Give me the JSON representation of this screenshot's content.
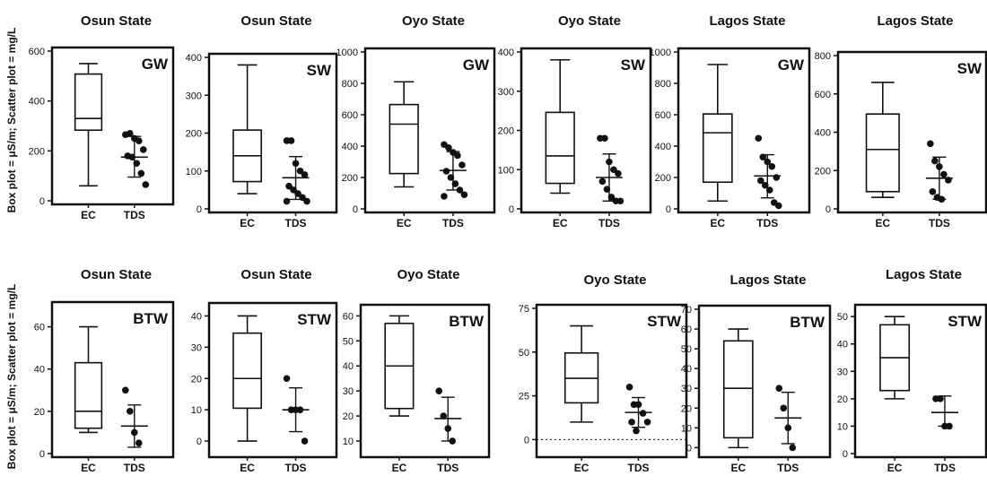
{
  "y_axis_label": "Box plot = μS/m; Scatter plot = mg/L",
  "colors": {
    "ink": "#111111",
    "background": "#ffffff"
  },
  "chart_data": [
    {
      "type": "box+scatter",
      "title": "Osun State",
      "tag": "GW",
      "categories": [
        "EC",
        "TDS"
      ],
      "ylim": [
        0,
        600
      ],
      "yticks": [
        0,
        200,
        400,
        600
      ],
      "box": {
        "min": 60,
        "q1": 283,
        "median": 330,
        "q3": 508,
        "max": 550
      },
      "points": [
        265,
        270,
        250,
        240,
        205,
        180,
        175,
        150,
        110,
        65
      ],
      "mean_sd": {
        "mean": 175,
        "lower": 95,
        "upper": 258
      }
    },
    {
      "type": "box+scatter",
      "title": "Osun State",
      "tag": "SW",
      "categories": [
        "EC",
        "TDS"
      ],
      "ylim": [
        0,
        400
      ],
      "yticks": [
        0,
        100,
        200,
        300,
        400
      ],
      "box": {
        "min": 40,
        "q1": 72,
        "median": 140,
        "q3": 208,
        "max": 380
      },
      "points": [
        180,
        180,
        120,
        100,
        90,
        60,
        50,
        40,
        30,
        20,
        20
      ],
      "mean_sd": {
        "mean": 82,
        "lower": 25,
        "upper": 138
      }
    },
    {
      "type": "box+scatter",
      "title": "Oyo State",
      "tag": "GW",
      "categories": [
        "EC",
        "TDS"
      ],
      "ylim": [
        0,
        1000
      ],
      "yticks": [
        0,
        200,
        400,
        600,
        800,
        1000
      ],
      "box": {
        "min": 140,
        "q1": 225,
        "median": 540,
        "q3": 665,
        "max": 810
      },
      "points": [
        410,
        390,
        360,
        340,
        280,
        240,
        200,
        160,
        120,
        90,
        80
      ],
      "mean_sd": {
        "mean": 245,
        "lower": 120,
        "upper": 365
      }
    },
    {
      "type": "box+scatter",
      "title": "Oyo State",
      "tag": "SW",
      "categories": [
        "EC",
        "TDS"
      ],
      "ylim": [
        0,
        400
      ],
      "yticks": [
        0,
        100,
        200,
        300,
        400
      ],
      "box": {
        "min": 40,
        "q1": 65,
        "median": 135,
        "q3": 246,
        "max": 380
      },
      "points": [
        180,
        180,
        120,
        100,
        90,
        70,
        50,
        30,
        20,
        20
      ],
      "mean_sd": {
        "mean": 80,
        "lower": 20,
        "upper": 140
      }
    },
    {
      "type": "box+scatter",
      "title": "Lagos State",
      "tag": "GW",
      "categories": [
        "EC",
        "TDS"
      ],
      "ylim": [
        0,
        1000
      ],
      "yticks": [
        0,
        200,
        400,
        600,
        800,
        1000
      ],
      "box": {
        "min": 50,
        "q1": 170,
        "median": 485,
        "q3": 605,
        "max": 920
      },
      "points": [
        450,
        330,
        300,
        270,
        200,
        180,
        150,
        120,
        40,
        20
      ],
      "mean_sd": {
        "mean": 210,
        "lower": 70,
        "upper": 345
      }
    },
    {
      "type": "box+scatter",
      "title": "Lagos State",
      "tag": "SW",
      "categories": [
        "EC",
        "TDS"
      ],
      "ylim": [
        0,
        800
      ],
      "yticks": [
        0,
        200,
        400,
        600,
        800
      ],
      "box": {
        "min": 60,
        "q1": 90,
        "median": 310,
        "q3": 495,
        "max": 660
      },
      "points": [
        340,
        250,
        220,
        180,
        150,
        90,
        60,
        50
      ],
      "mean_sd": {
        "mean": 160,
        "lower": 50,
        "upper": 270
      }
    },
    {
      "type": "box+scatter",
      "title": "Osun State",
      "tag": "BTW",
      "categories": [
        "EC",
        "TDS"
      ],
      "ylim": [
        0,
        70
      ],
      "yticks": [
        0,
        20,
        40,
        60
      ],
      "box": {
        "min": 10,
        "q1": 12,
        "median": 20,
        "q3": 43,
        "max": 60
      },
      "points": [
        30,
        20,
        10,
        5
      ],
      "mean_sd": {
        "mean": 13,
        "lower": 3,
        "upper": 23
      }
    },
    {
      "type": "box+scatter",
      "title": "Osun State",
      "tag": "STW",
      "categories": [
        "EC",
        "TDS"
      ],
      "ylim": [
        -4,
        43
      ],
      "yticks": [
        0,
        10,
        20,
        30,
        40
      ],
      "box": {
        "min": 0,
        "q1": 10.5,
        "median": 20,
        "q3": 34.5,
        "max": 40
      },
      "points": [
        20,
        10,
        10,
        10,
        0
      ],
      "mean_sd": {
        "mean": 10,
        "lower": 3,
        "upper": 17
      }
    },
    {
      "type": "box+scatter",
      "title": "Oyo State",
      "tag": "BTW",
      "categories": [
        "EC",
        "TDS"
      ],
      "ylim": [
        5,
        63
      ],
      "yticks": [
        10,
        20,
        30,
        40,
        50,
        60
      ],
      "box": {
        "min": 20,
        "q1": 23,
        "median": 40,
        "q3": 57,
        "max": 60
      },
      "points": [
        30,
        20,
        15,
        10
      ],
      "mean_sd": {
        "mean": 19,
        "lower": 10,
        "upper": 27.5
      }
    },
    {
      "type": "box+scatter",
      "title": "Oyo State",
      "tag": "STW",
      "categories": [
        "EC",
        "TDS"
      ],
      "ylim": [
        -8,
        75
      ],
      "yticks": [
        0,
        25,
        50,
        75
      ],
      "box": {
        "min": 10,
        "q1": 21,
        "median": 35,
        "q3": 49.5,
        "max": 65
      },
      "points": [
        30,
        20,
        20,
        15,
        10,
        10,
        5
      ],
      "mean_sd": {
        "mean": 15.5,
        "lower": 7,
        "upper": 24
      },
      "zero_line": "dotted"
    },
    {
      "type": "box+scatter",
      "title": "Lagos State",
      "tag": "BTW",
      "categories": [
        "EC",
        "TDS"
      ],
      "ylim": [
        -3,
        70
      ],
      "yticks": [
        0,
        10,
        20,
        30,
        40,
        50,
        60,
        70
      ],
      "box": {
        "min": 0,
        "q1": 5,
        "median": 30,
        "q3": 54,
        "max": 60
      },
      "points": [
        30,
        20,
        10,
        0
      ],
      "mean_sd": {
        "mean": 15,
        "lower": 2,
        "upper": 28
      }
    },
    {
      "type": "box+scatter",
      "title": "Lagos State",
      "tag": "STW",
      "categories": [
        "EC",
        "TDS"
      ],
      "ylim": [
        0,
        53
      ],
      "yticks": [
        0,
        10,
        20,
        30,
        40,
        50
      ],
      "box": {
        "min": 20,
        "q1": 23,
        "median": 35,
        "q3": 47,
        "max": 50
      },
      "points": [
        20,
        20,
        10,
        10
      ],
      "mean_sd": {
        "mean": 15,
        "lower": 10,
        "upper": 21
      }
    }
  ]
}
